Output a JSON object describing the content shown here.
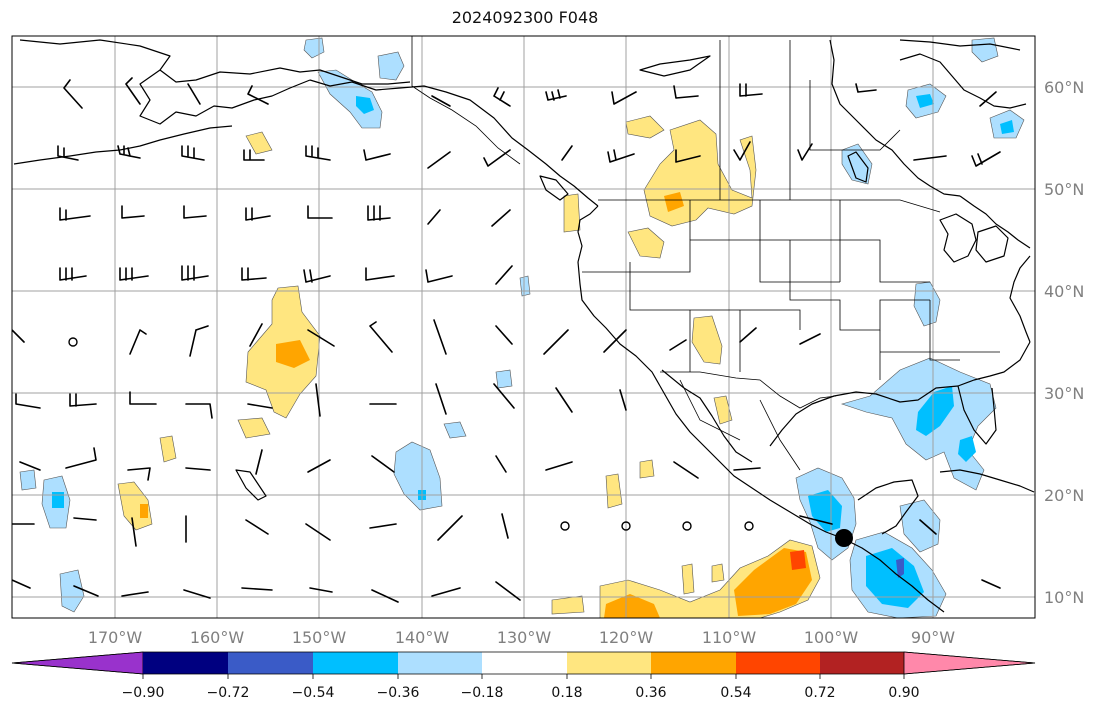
{
  "title": "2024092300 F048",
  "axes": {
    "lon_ticks": [
      "170°W",
      "160°W",
      "150°W",
      "140°W",
      "130°W",
      "120°W",
      "110°W",
      "100°W",
      "90°W"
    ],
    "lat_ticks": [
      "60°N",
      "50°N",
      "40°N",
      "30°N",
      "20°N",
      "10°N"
    ]
  },
  "colorbar": {
    "tick_labels": [
      "−0.90",
      "−0.72",
      "−0.54",
      "−0.36",
      "−0.18",
      "0.18",
      "0.36",
      "0.54",
      "0.72",
      "0.90"
    ],
    "colors": [
      "#9932CC",
      "#000080",
      "#3A5BC7",
      "#00BFFF",
      "#ADDFFF",
      "#FFFFFF",
      "#FFE680",
      "#FFA500",
      "#FF4500",
      "#B22222",
      "#FF88AA"
    ]
  },
  "colors": {
    "coast": "#000000",
    "grid": "#a0a0a0",
    "frame": "#000000",
    "marker": "#000000"
  }
}
